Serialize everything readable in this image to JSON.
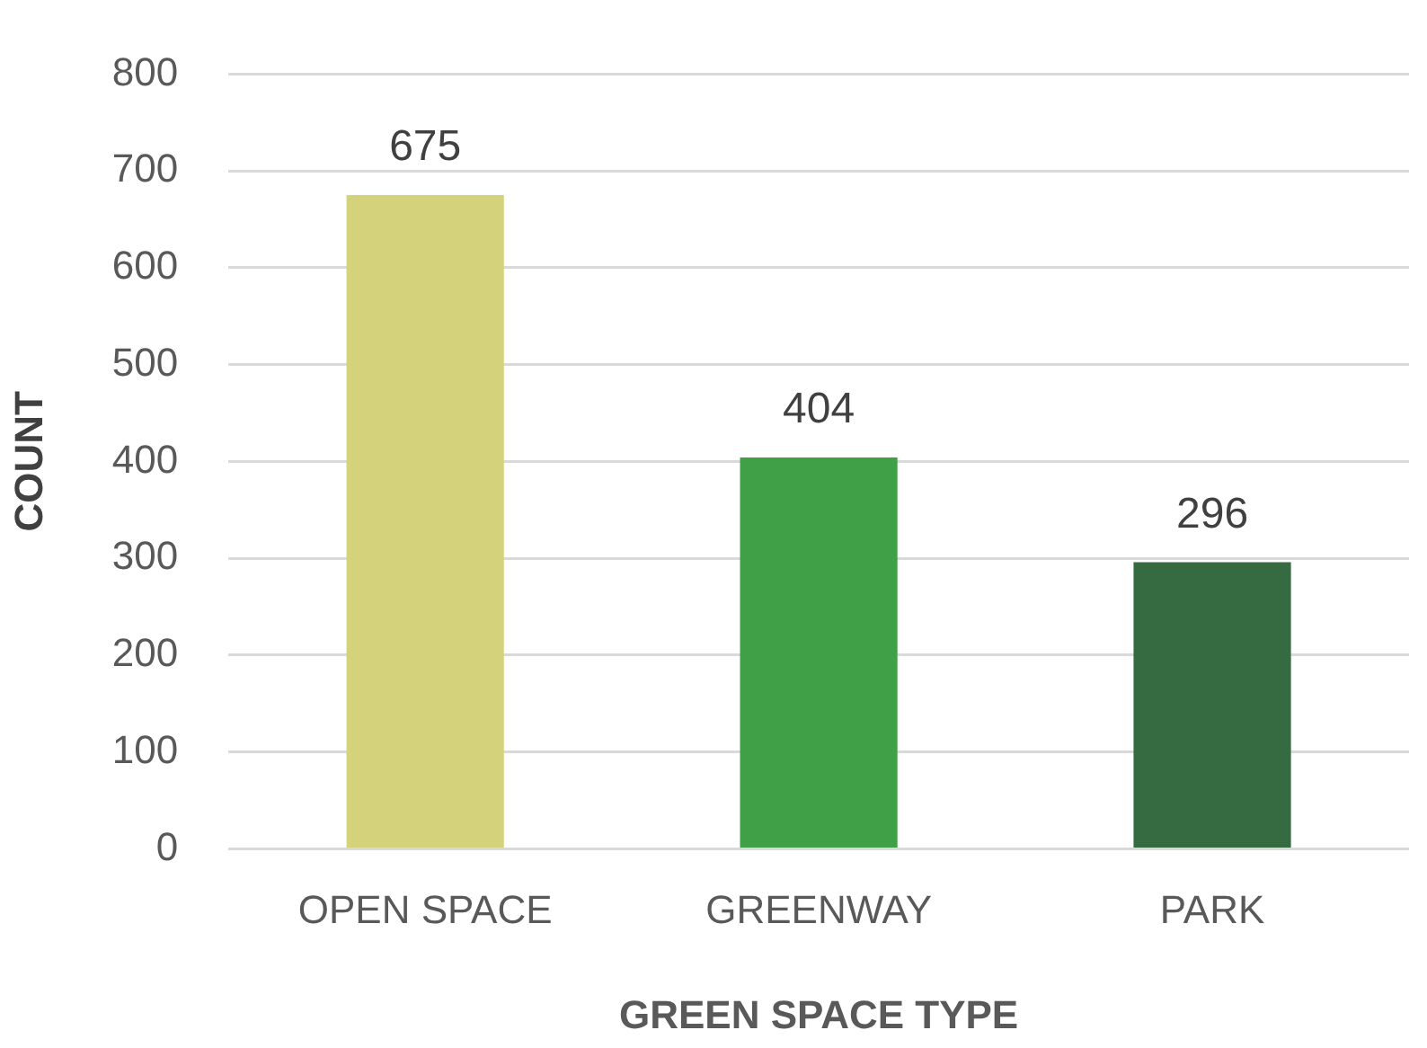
{
  "chart_data": {
    "type": "bar",
    "xlabel": "GREEN SPACE TYPE",
    "ylabel": "COUNT",
    "categories": [
      "OPEN SPACE",
      "GREENWAY",
      "PARK"
    ],
    "values": [
      675,
      404,
      296
    ],
    "colors": [
      "#d4d37c",
      "#40a047",
      "#366b42"
    ],
    "ylim": [
      0,
      800
    ],
    "yticks": [
      0,
      100,
      200,
      300,
      400,
      500,
      600,
      700,
      800
    ],
    "grid": "y",
    "data_labels": true,
    "legend": false
  }
}
